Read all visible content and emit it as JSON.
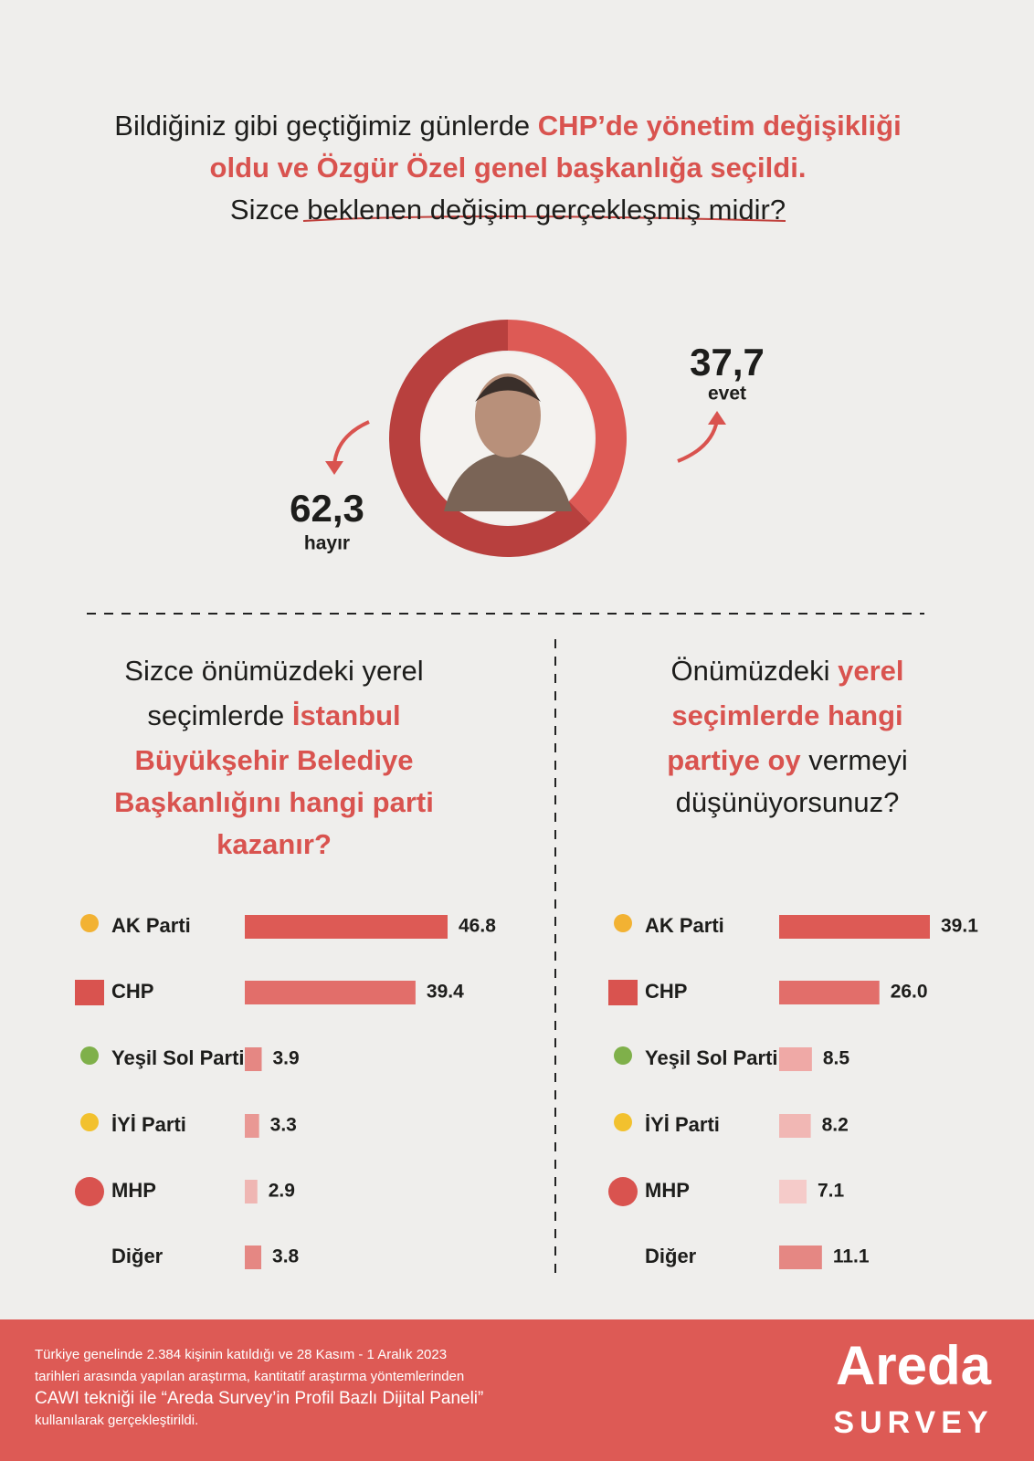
{
  "chart_data": [
    {
      "type": "donut",
      "title_lines": [
        [
          {
            "text": "Bildiğiniz gibi geçtiğimiz günlerde ",
            "highlight": false
          },
          {
            "text": "CHP’de yönetim değişikliği",
            "highlight": true
          }
        ],
        [
          {
            "text": "oldu ve Özgür Özel genel başkanlığa seçildi.",
            "highlight": true
          }
        ],
        [
          {
            "text": "Sizce beklenen değişim gerçekleşmiş midir?",
            "highlight": false
          }
        ]
      ],
      "categories": [
        "evet",
        "hayır"
      ],
      "values": [
        37.7,
        62.3
      ],
      "value_labels": [
        "37,7",
        "62,3"
      ],
      "colors": [
        "#dd5a55",
        "#b8403e"
      ]
    },
    {
      "type": "barh",
      "title_lines": [
        [
          {
            "text": "Sizce önümüzdeki yerel",
            "highlight": false
          }
        ],
        [
          {
            "text": "seçimlerde ",
            "highlight": false
          },
          {
            "text": "İstanbul",
            "highlight": true
          }
        ],
        [
          {
            "text": "Büyükşehir Belediye",
            "highlight": true
          }
        ],
        [
          {
            "text": "Başkanlığını hangi parti",
            "highlight": true
          }
        ],
        [
          {
            "text": "kazanır?",
            "highlight": true
          }
        ]
      ],
      "categories": [
        "AK Parti",
        "CHP",
        "Yeşil Sol Parti",
        "İYİ Parti",
        "MHP",
        "Diğer"
      ],
      "values": [
        46.8,
        39.4,
        3.9,
        3.3,
        2.9,
        3.8
      ],
      "value_labels": [
        "46.8",
        "39.4",
        "3.9",
        "3.3",
        "2.9",
        "3.8"
      ],
      "colors": [
        "#dd5a55",
        "#e26e6a",
        "#e58783",
        "#e99894",
        "#efb6b3",
        "#e58783"
      ]
    },
    {
      "type": "barh",
      "title_lines": [
        [
          {
            "text": "Önümüzdeki ",
            "highlight": false
          },
          {
            "text": "yerel",
            "highlight": true
          }
        ],
        [
          {
            "text": "seçimlerde hangi",
            "highlight": true
          }
        ],
        [
          {
            "text": "partiye oy",
            "highlight": true
          },
          {
            "text": " vermeyi",
            "highlight": false
          }
        ],
        [
          {
            "text": "düşünüyorsunuz?",
            "highlight": false
          }
        ]
      ],
      "categories": [
        "AK Parti",
        "CHP",
        "Yeşil Sol Parti",
        "İYİ Parti",
        "MHP",
        "Diğer"
      ],
      "values": [
        39.1,
        26.0,
        8.5,
        8.2,
        7.1,
        11.1
      ],
      "value_labels": [
        "39.1",
        "26.0",
        "8.5",
        "8.2",
        "7.1",
        "11.1"
      ],
      "colors": [
        "#dd5a55",
        "#e26e6a",
        "#efa9a6",
        "#f1b7b4",
        "#f5cbc9",
        "#e58783"
      ]
    }
  ],
  "highlight_color": "#d9534f",
  "footer": {
    "lines": [
      "Türkiye genelinde 2.384 kişinin katıldığı ve 28 Kasım - 1 Aralık 2023",
      "tarihleri arasında yapılan araştırma, kantitatif araştırma yöntemlerinden",
      "CAWI tekniği ile “Areda Survey’in Profil Bazlı Dijital Paneli”",
      "kullanılarak gerçekleştirildi."
    ],
    "brand": "Areda",
    "brand_sub": "SURVEY"
  }
}
